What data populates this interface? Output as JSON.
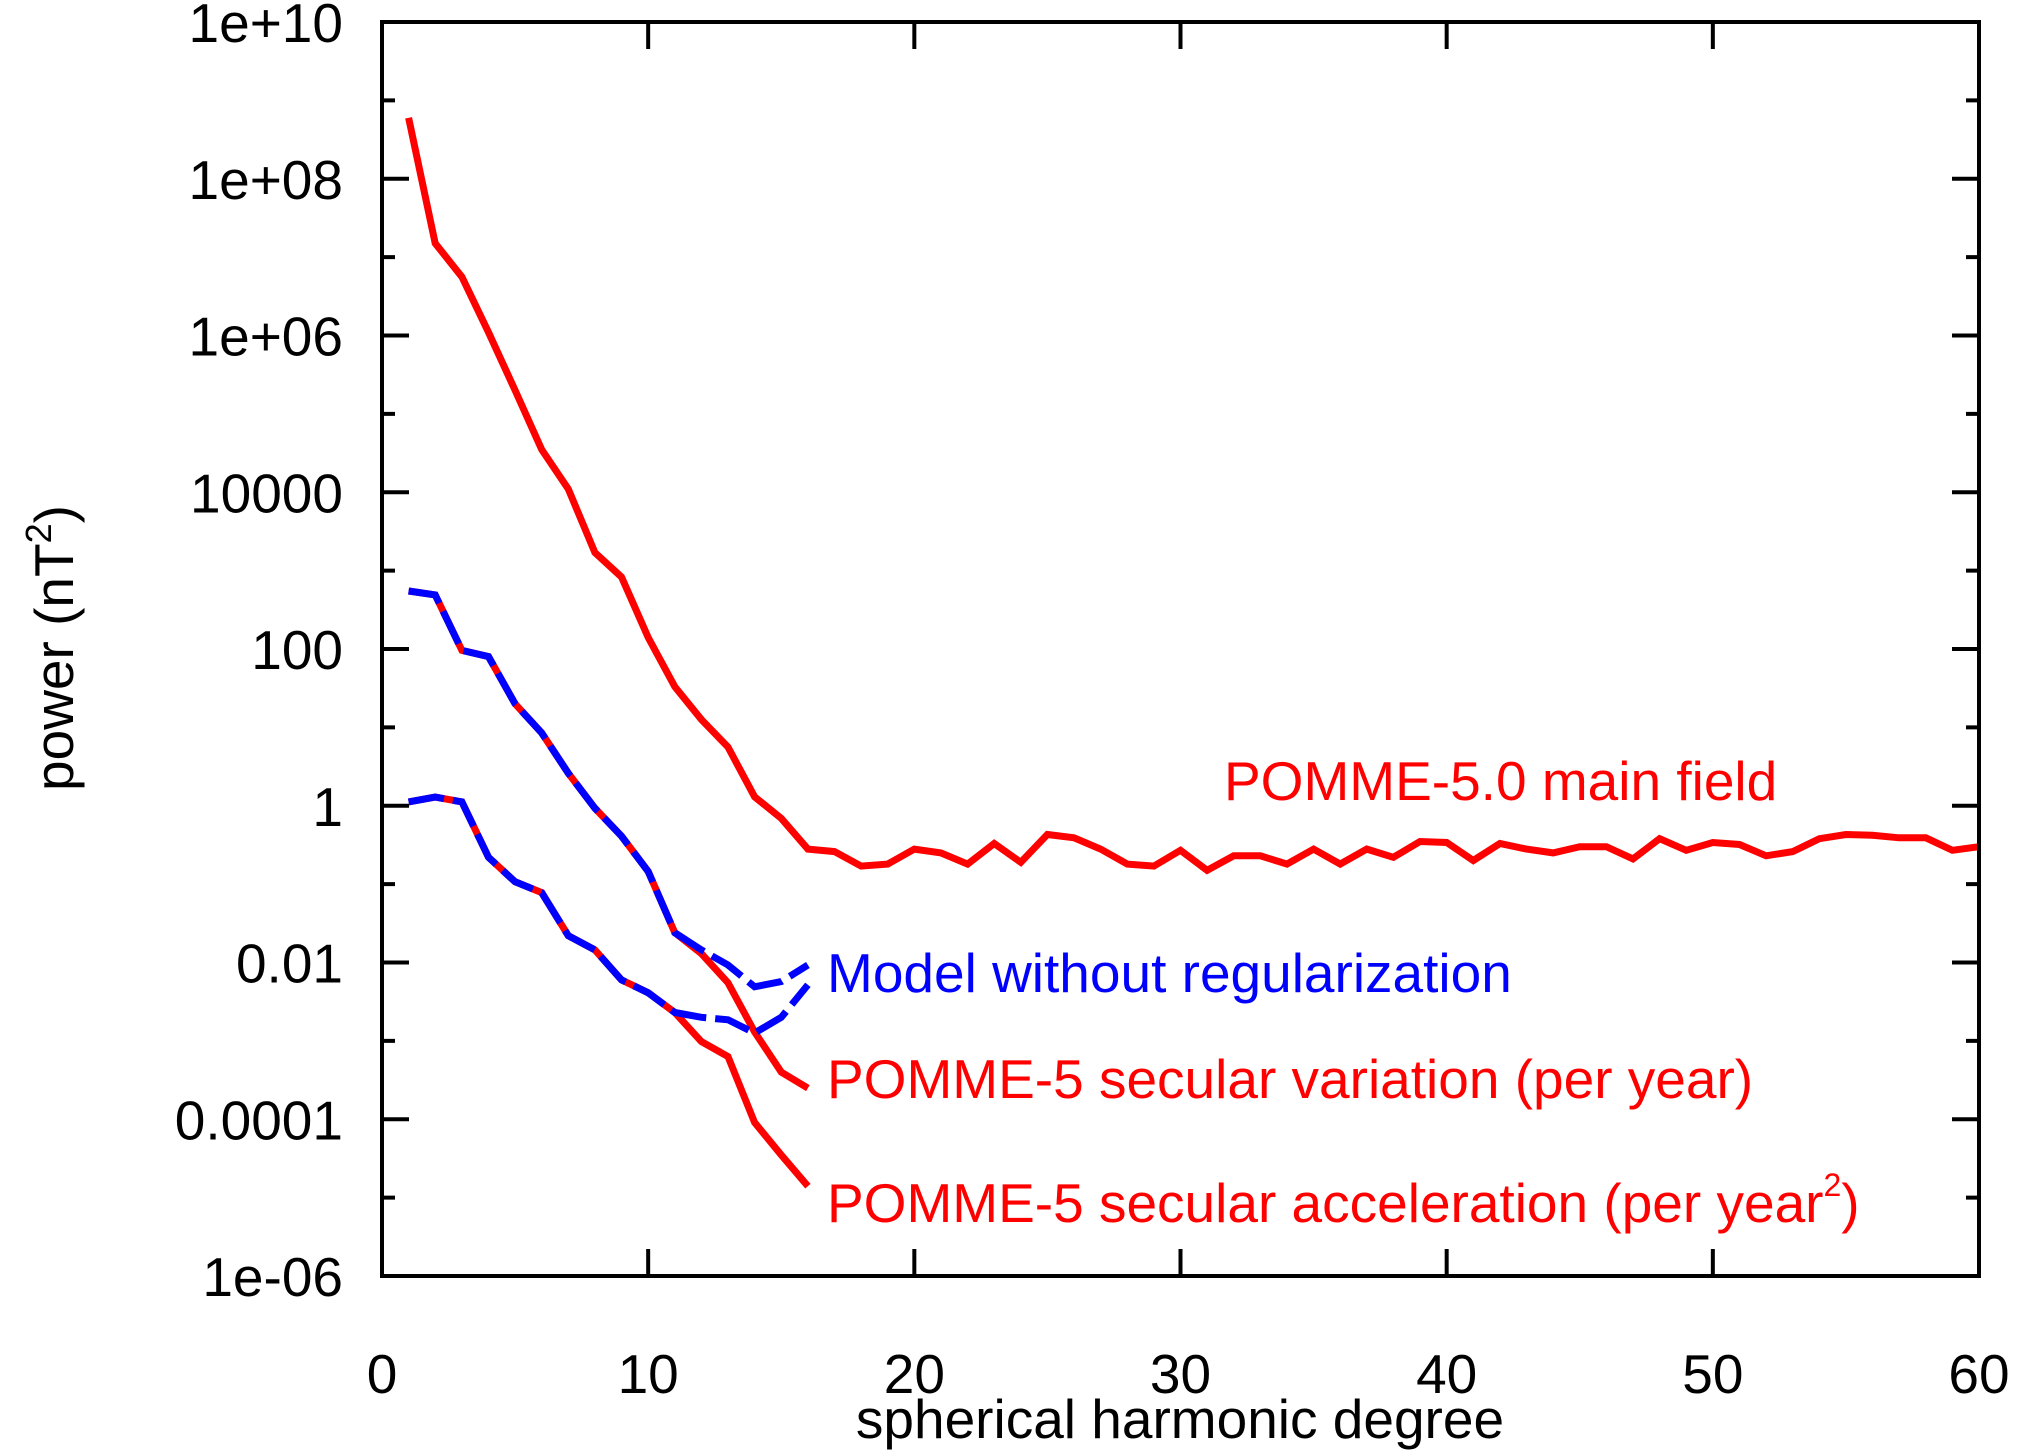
{
  "chart_data": {
    "type": "line",
    "title": "",
    "xlabel": "spherical harmonic degree",
    "ylabel": "power (nT²)",
    "ylabel_parts": {
      "main": "power (nT",
      "sup": "2",
      "tail": ")"
    },
    "xscale": "linear",
    "yscale": "log",
    "xlim": [
      0,
      60
    ],
    "ylim": [
      1e-06,
      10000000000.0
    ],
    "grid": false,
    "x_ticks": [
      0,
      10,
      20,
      30,
      40,
      50,
      60
    ],
    "x_tick_labels": [
      "0",
      "10",
      "20",
      "30",
      "40",
      "50",
      "60"
    ],
    "y_ticks": [
      1e-06,
      0.0001,
      0.01,
      1,
      100.0,
      10000.0,
      1000000.0,
      100000000.0,
      10000000000.0
    ],
    "y_tick_labels": [
      "1e-06",
      "0.0001",
      "0.01",
      "1",
      "100",
      "10000",
      "1e+06",
      "1e+08",
      "1e+10"
    ],
    "y_minor_ticks": [
      1e-05,
      0.001,
      0.1,
      10,
      1000.0,
      100000.0,
      10000000.0,
      1000000000.0
    ],
    "colors": {
      "red": "#ff0000",
      "blue": "#0000ff",
      "axis": "#000000"
    },
    "series": [
      {
        "name": "POMME-5.0 main field",
        "color": "#ff0000",
        "style": "solid",
        "x": [
          1,
          2,
          3,
          4,
          5,
          6,
          7,
          8,
          9,
          10,
          11,
          12,
          13,
          14,
          15,
          16,
          17,
          18,
          19,
          20,
          21,
          22,
          23,
          24,
          25,
          26,
          27,
          28,
          29,
          30,
          31,
          32,
          33,
          34,
          35,
          36,
          37,
          38,
          39,
          40,
          41,
          42,
          43,
          44,
          45,
          46,
          47,
          48,
          49,
          50,
          51,
          52,
          53,
          54,
          55,
          56,
          57,
          58,
          59,
          60
        ],
        "values": [
          600000000.0,
          15000000.0,
          5600000.0,
          1100000.0,
          200000.0,
          35000.0,
          11000.0,
          1700,
          830,
          140,
          33,
          12.6,
          5.6,
          1.3,
          0.69,
          0.28,
          0.26,
          0.17,
          0.18,
          0.28,
          0.25,
          0.18,
          0.33,
          0.19,
          0.43,
          0.39,
          0.28,
          0.18,
          0.17,
          0.27,
          0.15,
          0.23,
          0.23,
          0.18,
          0.28,
          0.18,
          0.28,
          0.22,
          0.35,
          0.34,
          0.2,
          0.33,
          0.28,
          0.25,
          0.3,
          0.3,
          0.21,
          0.38,
          0.27,
          0.34,
          0.32,
          0.23,
          0.26,
          0.38,
          0.43,
          0.42,
          0.39,
          0.39,
          0.27,
          0.3
        ],
        "annotation": "POMME-5.0 main field"
      },
      {
        "name": "Model without regularization (secular variation)",
        "color": "#0000ff",
        "style": "dashed",
        "x": [
          1,
          2,
          3,
          4,
          5,
          6,
          7,
          8,
          9,
          10,
          11,
          12,
          13,
          14,
          15,
          16
        ],
        "values": [
          550,
          490,
          96,
          80,
          20,
          8.5,
          2.6,
          0.93,
          0.41,
          0.145,
          0.024,
          0.0145,
          0.0093,
          0.0049,
          0.0057,
          0.0093
        ]
      },
      {
        "name": "Model without regularization (secular acceleration)",
        "color": "#0000ff",
        "style": "dashed",
        "x": [
          1,
          2,
          3,
          4,
          5,
          6,
          7,
          8,
          9,
          10,
          11,
          12,
          13,
          14,
          15,
          16
        ],
        "values": [
          1.12,
          1.29,
          1.12,
          0.22,
          0.107,
          0.078,
          0.022,
          0.0145,
          0.006,
          0.0041,
          0.0023,
          0.002,
          0.00186,
          0.00126,
          0.002,
          0.0052
        ]
      },
      {
        "name": "POMME-5 secular variation (per year)",
        "color": "#ff0000",
        "style": "solid",
        "x": [
          1,
          2,
          3,
          4,
          5,
          6,
          7,
          8,
          9,
          10,
          11,
          12,
          13,
          14,
          15,
          16
        ],
        "values": [
          550,
          490,
          96,
          80,
          20,
          8.5,
          2.6,
          0.93,
          0.41,
          0.145,
          0.024,
          0.013,
          0.0055,
          0.0013,
          0.0004,
          0.00025
        ]
      },
      {
        "name": "POMME-5 secular acceleration (per year²)",
        "color": "#ff0000",
        "style": "solid",
        "x": [
          1,
          2,
          3,
          4,
          5,
          6,
          7,
          8,
          9,
          10,
          11,
          12,
          13,
          14,
          15,
          16
        ],
        "values": [
          1.12,
          1.29,
          1.12,
          0.22,
          0.107,
          0.078,
          0.022,
          0.0145,
          0.006,
          0.0041,
          0.0023,
          0.00098,
          0.00063,
          9.1e-05,
          3.5e-05,
          1.4e-05
        ]
      }
    ],
    "annotations": [
      {
        "id": "main",
        "text": "POMME-5.0 main field",
        "color": "#ff0000"
      },
      {
        "id": "noreg",
        "text": "Model without regularization",
        "color": "#0000ff"
      },
      {
        "id": "sv",
        "text": "POMME-5 secular variation (per year)",
        "color": "#ff0000"
      },
      {
        "id": "sa",
        "text": "POMME-5 secular acceleration (per year",
        "sup": "2",
        "tail": ")",
        "color": "#ff0000"
      }
    ],
    "legend": "none (inline annotations)"
  }
}
